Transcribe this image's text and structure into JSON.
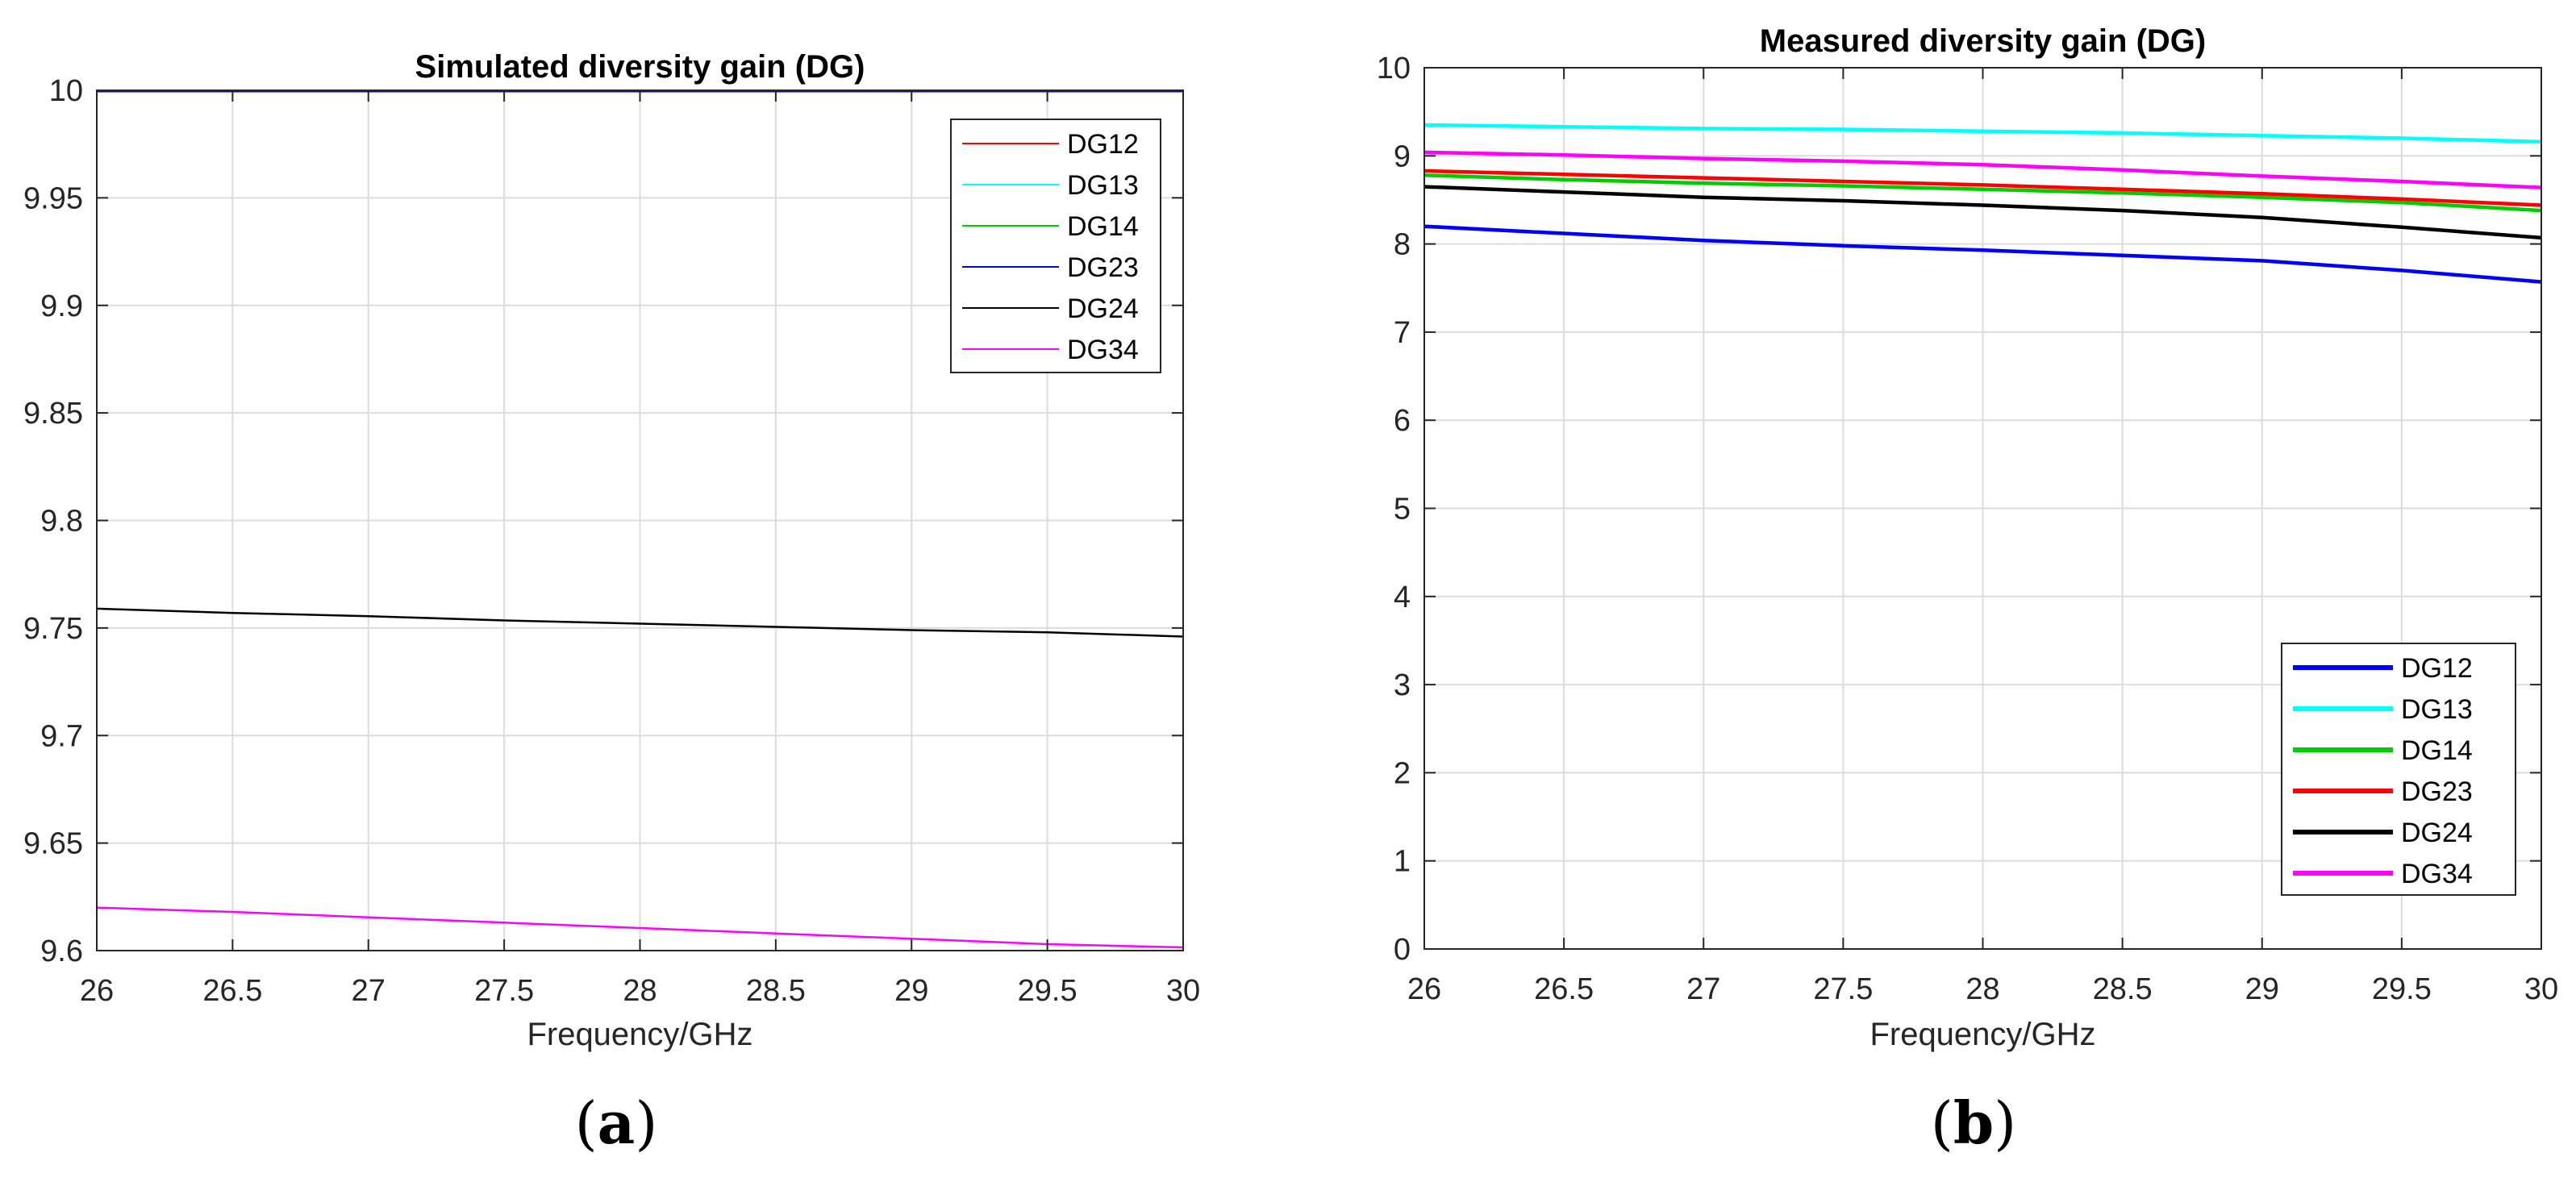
{
  "panels": [
    {
      "label_letter": "a",
      "chart_data": {
        "type": "line",
        "title": "Simulated diversity gain (DG)",
        "xlabel": "Frequency/GHz",
        "ylabel": "",
        "xlim": [
          26,
          30
        ],
        "ylim": [
          9.6,
          10
        ],
        "xticks": [
          26,
          26.5,
          27,
          27.5,
          28,
          28.5,
          29,
          29.5,
          30
        ],
        "xtick_labels": [
          "26",
          "26.5",
          "27",
          "27.5",
          "28",
          "28.5",
          "29",
          "29.5",
          "30"
        ],
        "yticks": [
          9.6,
          9.65,
          9.7,
          9.75,
          9.8,
          9.85,
          9.9,
          9.95,
          10
        ],
        "ytick_labels": [
          "9.6",
          "9.65",
          "9.7",
          "9.75",
          "9.8",
          "9.85",
          "9.9",
          "9.95",
          "10"
        ],
        "grid": true,
        "legend_position": "top-right",
        "x": [
          26,
          26.5,
          27,
          27.5,
          28,
          28.5,
          29,
          29.5,
          30
        ],
        "series": [
          {
            "name": "DG12",
            "color": "#ff0000",
            "values": [
              9.9995,
              9.9995,
              9.9995,
              9.9995,
              9.9995,
              9.9995,
              9.9995,
              9.9995,
              9.9995
            ]
          },
          {
            "name": "DG13",
            "color": "#00ffff",
            "values": [
              9.9995,
              9.9995,
              9.9995,
              9.9995,
              9.9995,
              9.9995,
              9.9995,
              9.9995,
              9.9995
            ]
          },
          {
            "name": "DG14",
            "color": "#00cc00",
            "values": [
              9.9995,
              9.9995,
              9.9995,
              9.9995,
              9.9995,
              9.9995,
              9.9995,
              9.9995,
              9.9995
            ]
          },
          {
            "name": "DG23",
            "color": "#0000ff",
            "values": [
              9.9995,
              9.9995,
              9.9995,
              9.9995,
              9.9995,
              9.9995,
              9.9995,
              9.9995,
              9.9995
            ]
          },
          {
            "name": "DG24",
            "color": "#000000",
            "values": [
              9.759,
              9.757,
              9.7555,
              9.7535,
              9.752,
              9.7505,
              9.749,
              9.748,
              9.746
            ]
          },
          {
            "name": "DG34",
            "color": "#ff00ff",
            "values": [
              9.62,
              9.618,
              9.6155,
              9.613,
              9.6105,
              9.608,
              9.6055,
              9.603,
              9.6015
            ]
          }
        ]
      }
    },
    {
      "label_letter": "b",
      "chart_data": {
        "type": "line",
        "title": "Measured diversity gain (DG)",
        "xlabel": "Frequency/GHz",
        "ylabel": "",
        "xlim": [
          26,
          30
        ],
        "ylim": [
          0,
          10
        ],
        "xticks": [
          26,
          26.5,
          27,
          27.5,
          28,
          28.5,
          29,
          29.5,
          30
        ],
        "xtick_labels": [
          "26",
          "26.5",
          "27",
          "27.5",
          "28",
          "28.5",
          "29",
          "29.5",
          "30"
        ],
        "yticks": [
          0,
          1,
          2,
          3,
          4,
          5,
          6,
          7,
          8,
          9,
          10
        ],
        "ytick_labels": [
          "0",
          "1",
          "2",
          "3",
          "4",
          "5",
          "6",
          "7",
          "8",
          "9",
          "10"
        ],
        "grid": true,
        "legend_position": "bottom-right",
        "x": [
          26,
          26.5,
          27,
          27.5,
          28,
          28.5,
          29,
          29.5,
          30
        ],
        "series": [
          {
            "name": "DG12",
            "color": "#0000ff",
            "values": [
              8.2,
              8.12,
              8.04,
              7.98,
              7.93,
              7.87,
              7.81,
              7.7,
              7.57
            ]
          },
          {
            "name": "DG13",
            "color": "#00ffff",
            "values": [
              9.35,
              9.33,
              9.31,
              9.3,
              9.28,
              9.26,
              9.23,
              9.2,
              9.16
            ]
          },
          {
            "name": "DG14",
            "color": "#00cc00",
            "values": [
              8.78,
              8.73,
              8.69,
              8.66,
              8.62,
              8.58,
              8.53,
              8.47,
              8.38
            ]
          },
          {
            "name": "DG23",
            "color": "#ff0000",
            "values": [
              8.83,
              8.79,
              8.75,
              8.71,
              8.67,
              8.62,
              8.57,
              8.51,
              8.44
            ]
          },
          {
            "name": "DG24",
            "color": "#000000",
            "values": [
              8.65,
              8.59,
              8.53,
              8.49,
              8.44,
              8.38,
              8.3,
              8.19,
              8.07
            ]
          },
          {
            "name": "DG34",
            "color": "#ff00ff",
            "values": [
              9.04,
              9.01,
              8.97,
              8.94,
              8.9,
              8.84,
              8.77,
              8.71,
              8.64
            ]
          }
        ]
      }
    }
  ]
}
